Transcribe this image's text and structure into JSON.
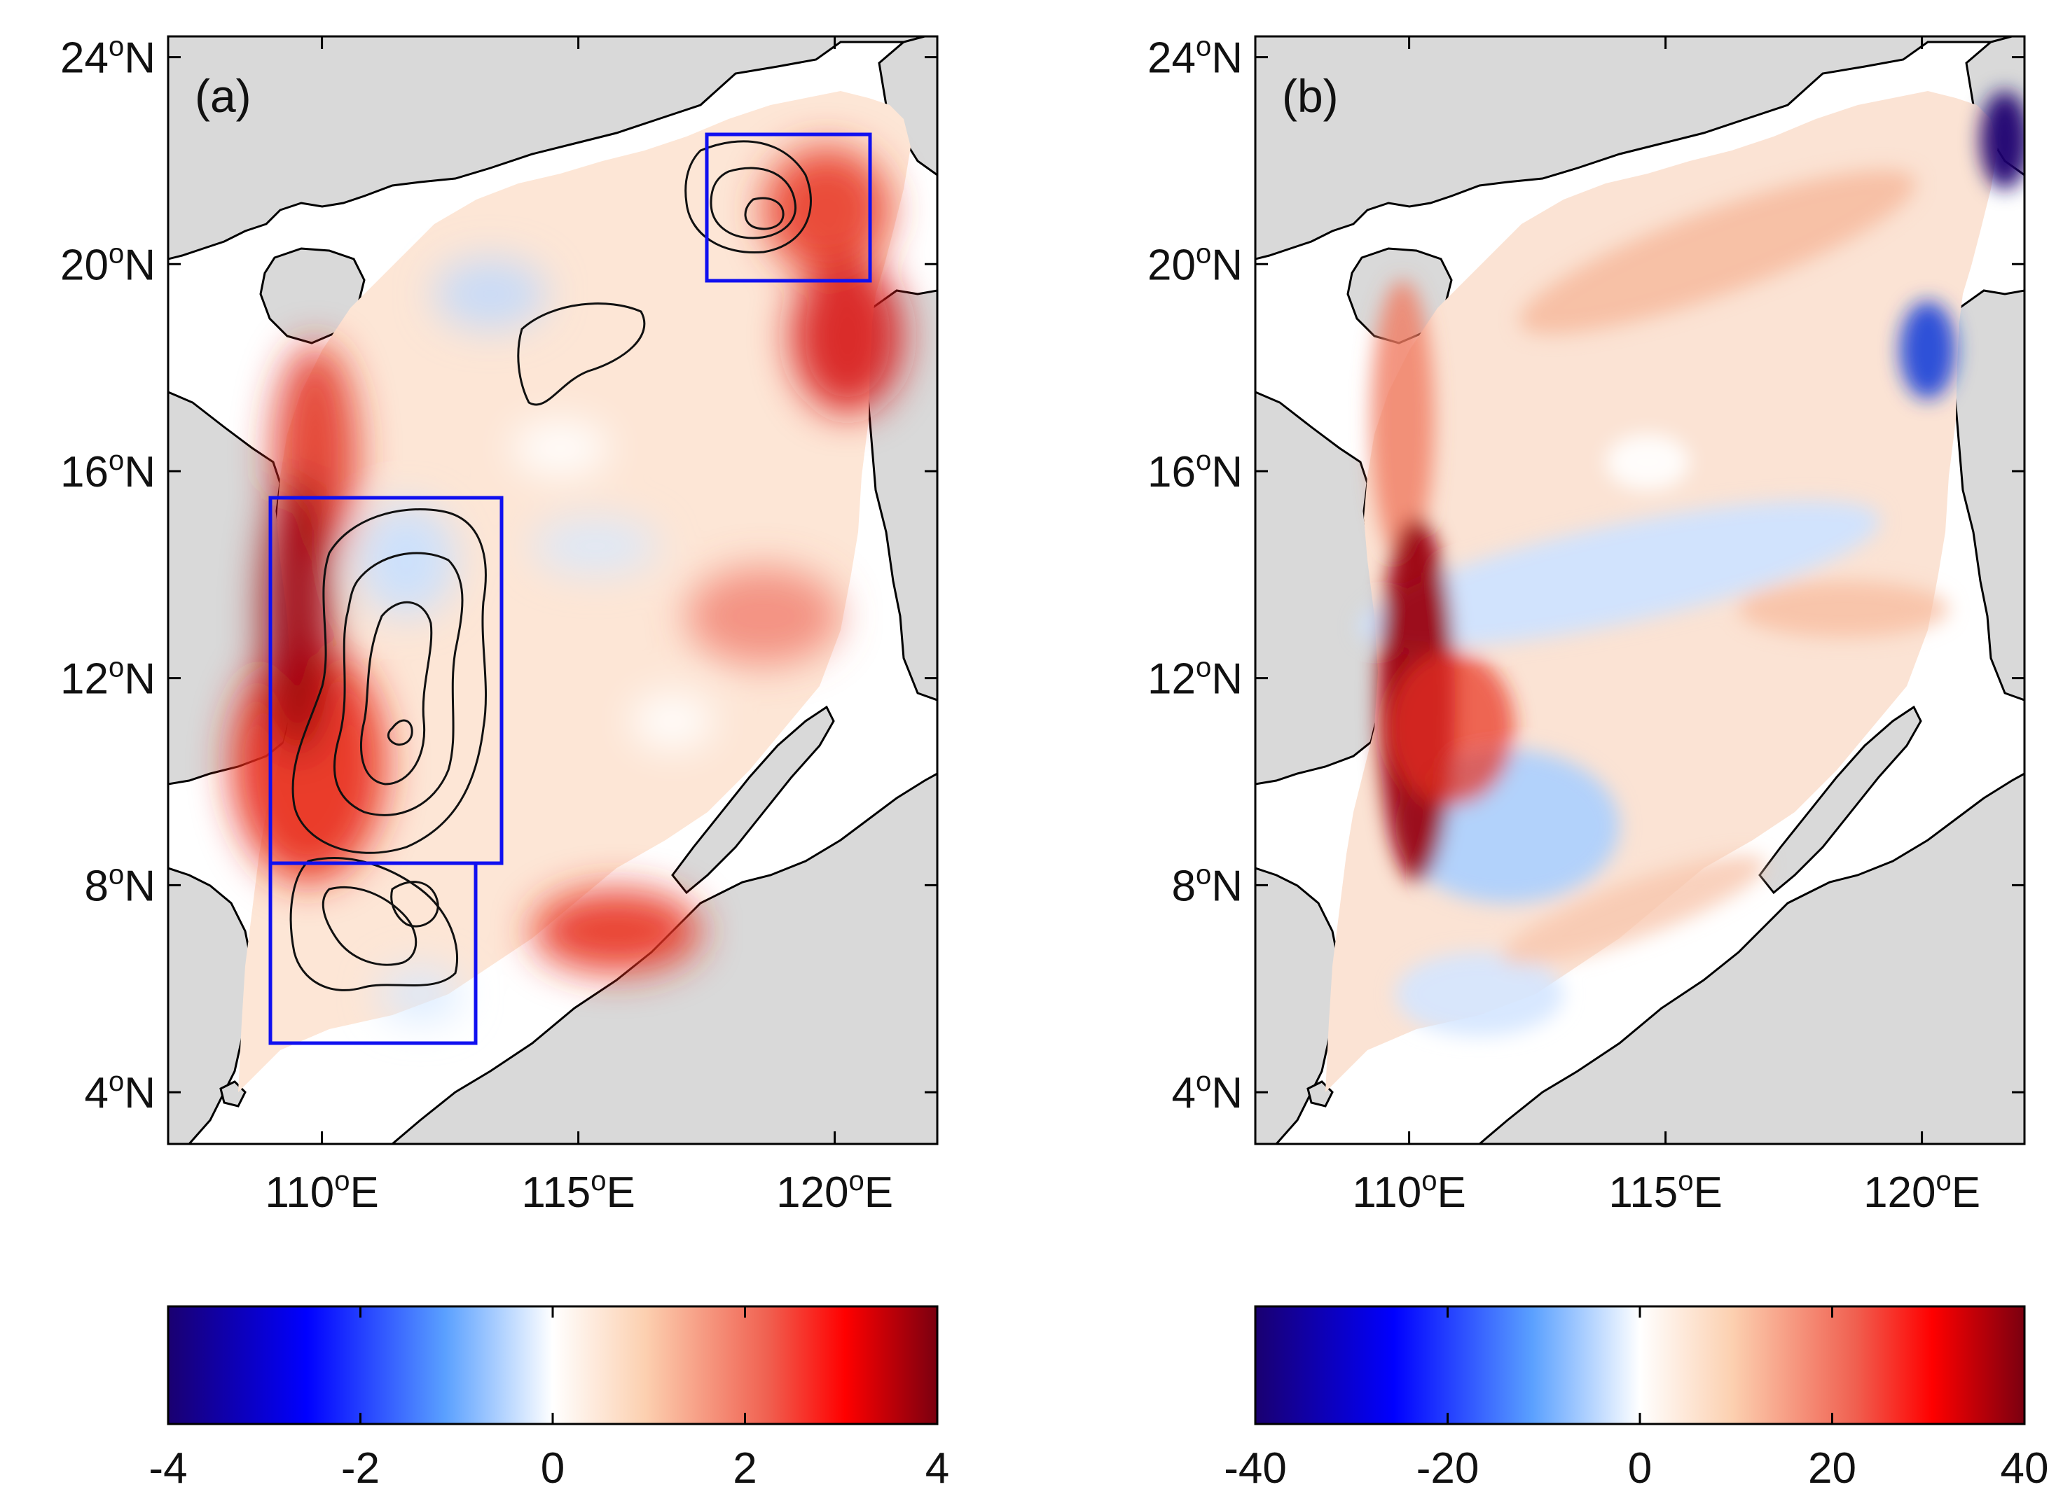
{
  "figure": {
    "panels": [
      {
        "id": "a",
        "label": "(a)",
        "y_ticks": [
          {
            "lat": 24,
            "label": "24",
            "sup": "o",
            "suffix": "N"
          },
          {
            "lat": 20,
            "label": "20",
            "sup": "o",
            "suffix": "N"
          },
          {
            "lat": 16,
            "label": "16",
            "sup": "o",
            "suffix": "N"
          },
          {
            "lat": 12,
            "label": "12",
            "sup": "o",
            "suffix": "N"
          },
          {
            "lat": 8,
            "label": "8",
            "sup": "o",
            "suffix": "N"
          },
          {
            "lat": 4,
            "label": "4",
            "sup": "o",
            "suffix": "N"
          }
        ],
        "x_ticks": [
          {
            "lon": 110,
            "label": "110",
            "sup": "o",
            "suffix": "E"
          },
          {
            "lon": 115,
            "label": "115",
            "sup": "o",
            "suffix": "E"
          },
          {
            "lon": 120,
            "label": "120",
            "sup": "o",
            "suffix": "E"
          }
        ],
        "colorbar": {
          "min": -4,
          "max": 4,
          "tick_labels": [
            "-4",
            "-2",
            "0",
            "2",
            "4"
          ]
        },
        "boxes": [
          {
            "name": "Luzon Strait box",
            "lon": [
              117.5,
              120.7
            ],
            "lat": [
              19.5,
              22.3
            ]
          },
          {
            "name": "Vietnam coast box",
            "lon": [
              109.0,
              113.5
            ],
            "lat": [
              8.5,
              15.5
            ]
          },
          {
            "name": "Southern box",
            "lon": [
              109.0,
              113.0
            ],
            "lat": [
              5.0,
              8.5
            ]
          }
        ]
      },
      {
        "id": "b",
        "label": "(b)",
        "y_ticks": [
          {
            "lat": 24,
            "label": "24",
            "sup": "o",
            "suffix": "N"
          },
          {
            "lat": 20,
            "label": "20",
            "sup": "o",
            "suffix": "N"
          },
          {
            "lat": 16,
            "label": "16",
            "sup": "o",
            "suffix": "N"
          },
          {
            "lat": 12,
            "label": "12",
            "sup": "o",
            "suffix": "N"
          },
          {
            "lat": 8,
            "label": "8",
            "sup": "o",
            "suffix": "N"
          },
          {
            "lat": 4,
            "label": "4",
            "sup": "o",
            "suffix": "N"
          }
        ],
        "x_ticks": [
          {
            "lon": 110,
            "label": "110",
            "sup": "o",
            "suffix": "E"
          },
          {
            "lon": 115,
            "label": "115",
            "sup": "o",
            "suffix": "E"
          },
          {
            "lon": 120,
            "label": "120",
            "sup": "o",
            "suffix": "E"
          }
        ],
        "colorbar": {
          "min": -40,
          "max": 40,
          "tick_labels": [
            "-40",
            "-20",
            "0",
            "20",
            "40"
          ]
        }
      }
    ],
    "map_extent": {
      "lon": [
        107,
        122
      ],
      "lat": [
        3,
        24.4
      ]
    },
    "colors": {
      "land": "#d9d9d9",
      "ocean_bg": "#ffffff",
      "box": "#1010f0",
      "contour": "#111111",
      "cmap": [
        "#1a0070",
        "#0000ff",
        "#5aa0ff",
        "#ffffff",
        "#fcd0b0",
        "#f06050",
        "#ff0000",
        "#7a0010"
      ]
    }
  }
}
